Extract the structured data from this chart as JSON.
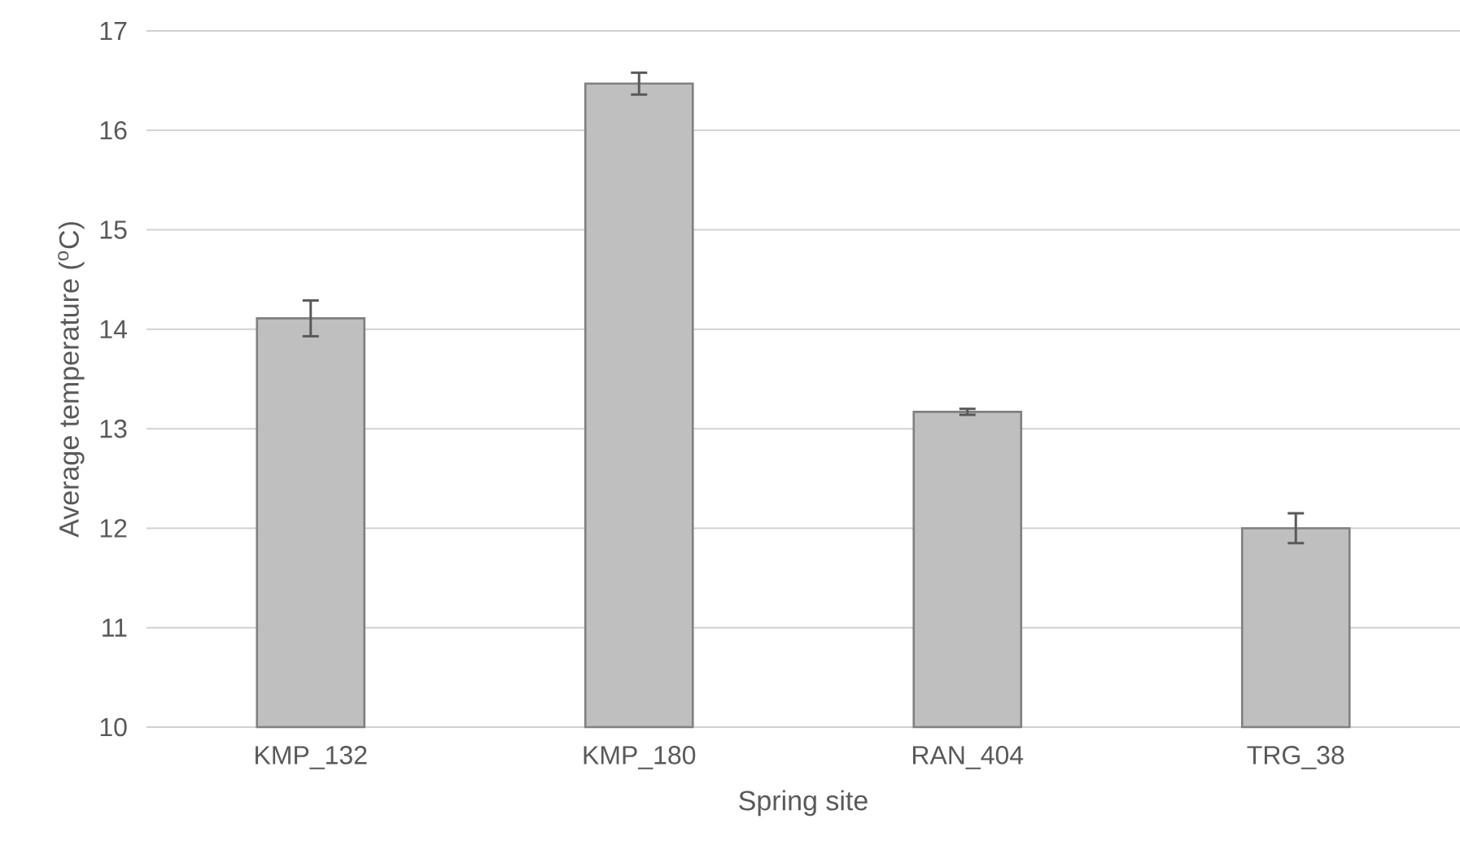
{
  "chart_data": {
    "type": "bar",
    "xlabel": "Spring site",
    "ylabel": "Average temperature ($^{o}$C)",
    "categories": [
      "KMP_132",
      "KMP_180",
      "RAN_404",
      "TRG_38"
    ],
    "values": [
      14.11,
      16.47,
      13.17,
      12.0
    ],
    "errors": [
      0.18,
      0.11,
      0.03,
      0.15
    ],
    "color": "#bfbfbf",
    "ylim": [
      10,
      17
    ],
    "yticks": [
      10,
      11,
      12,
      13,
      14,
      15,
      16,
      17
    ],
    "grid": "y"
  }
}
